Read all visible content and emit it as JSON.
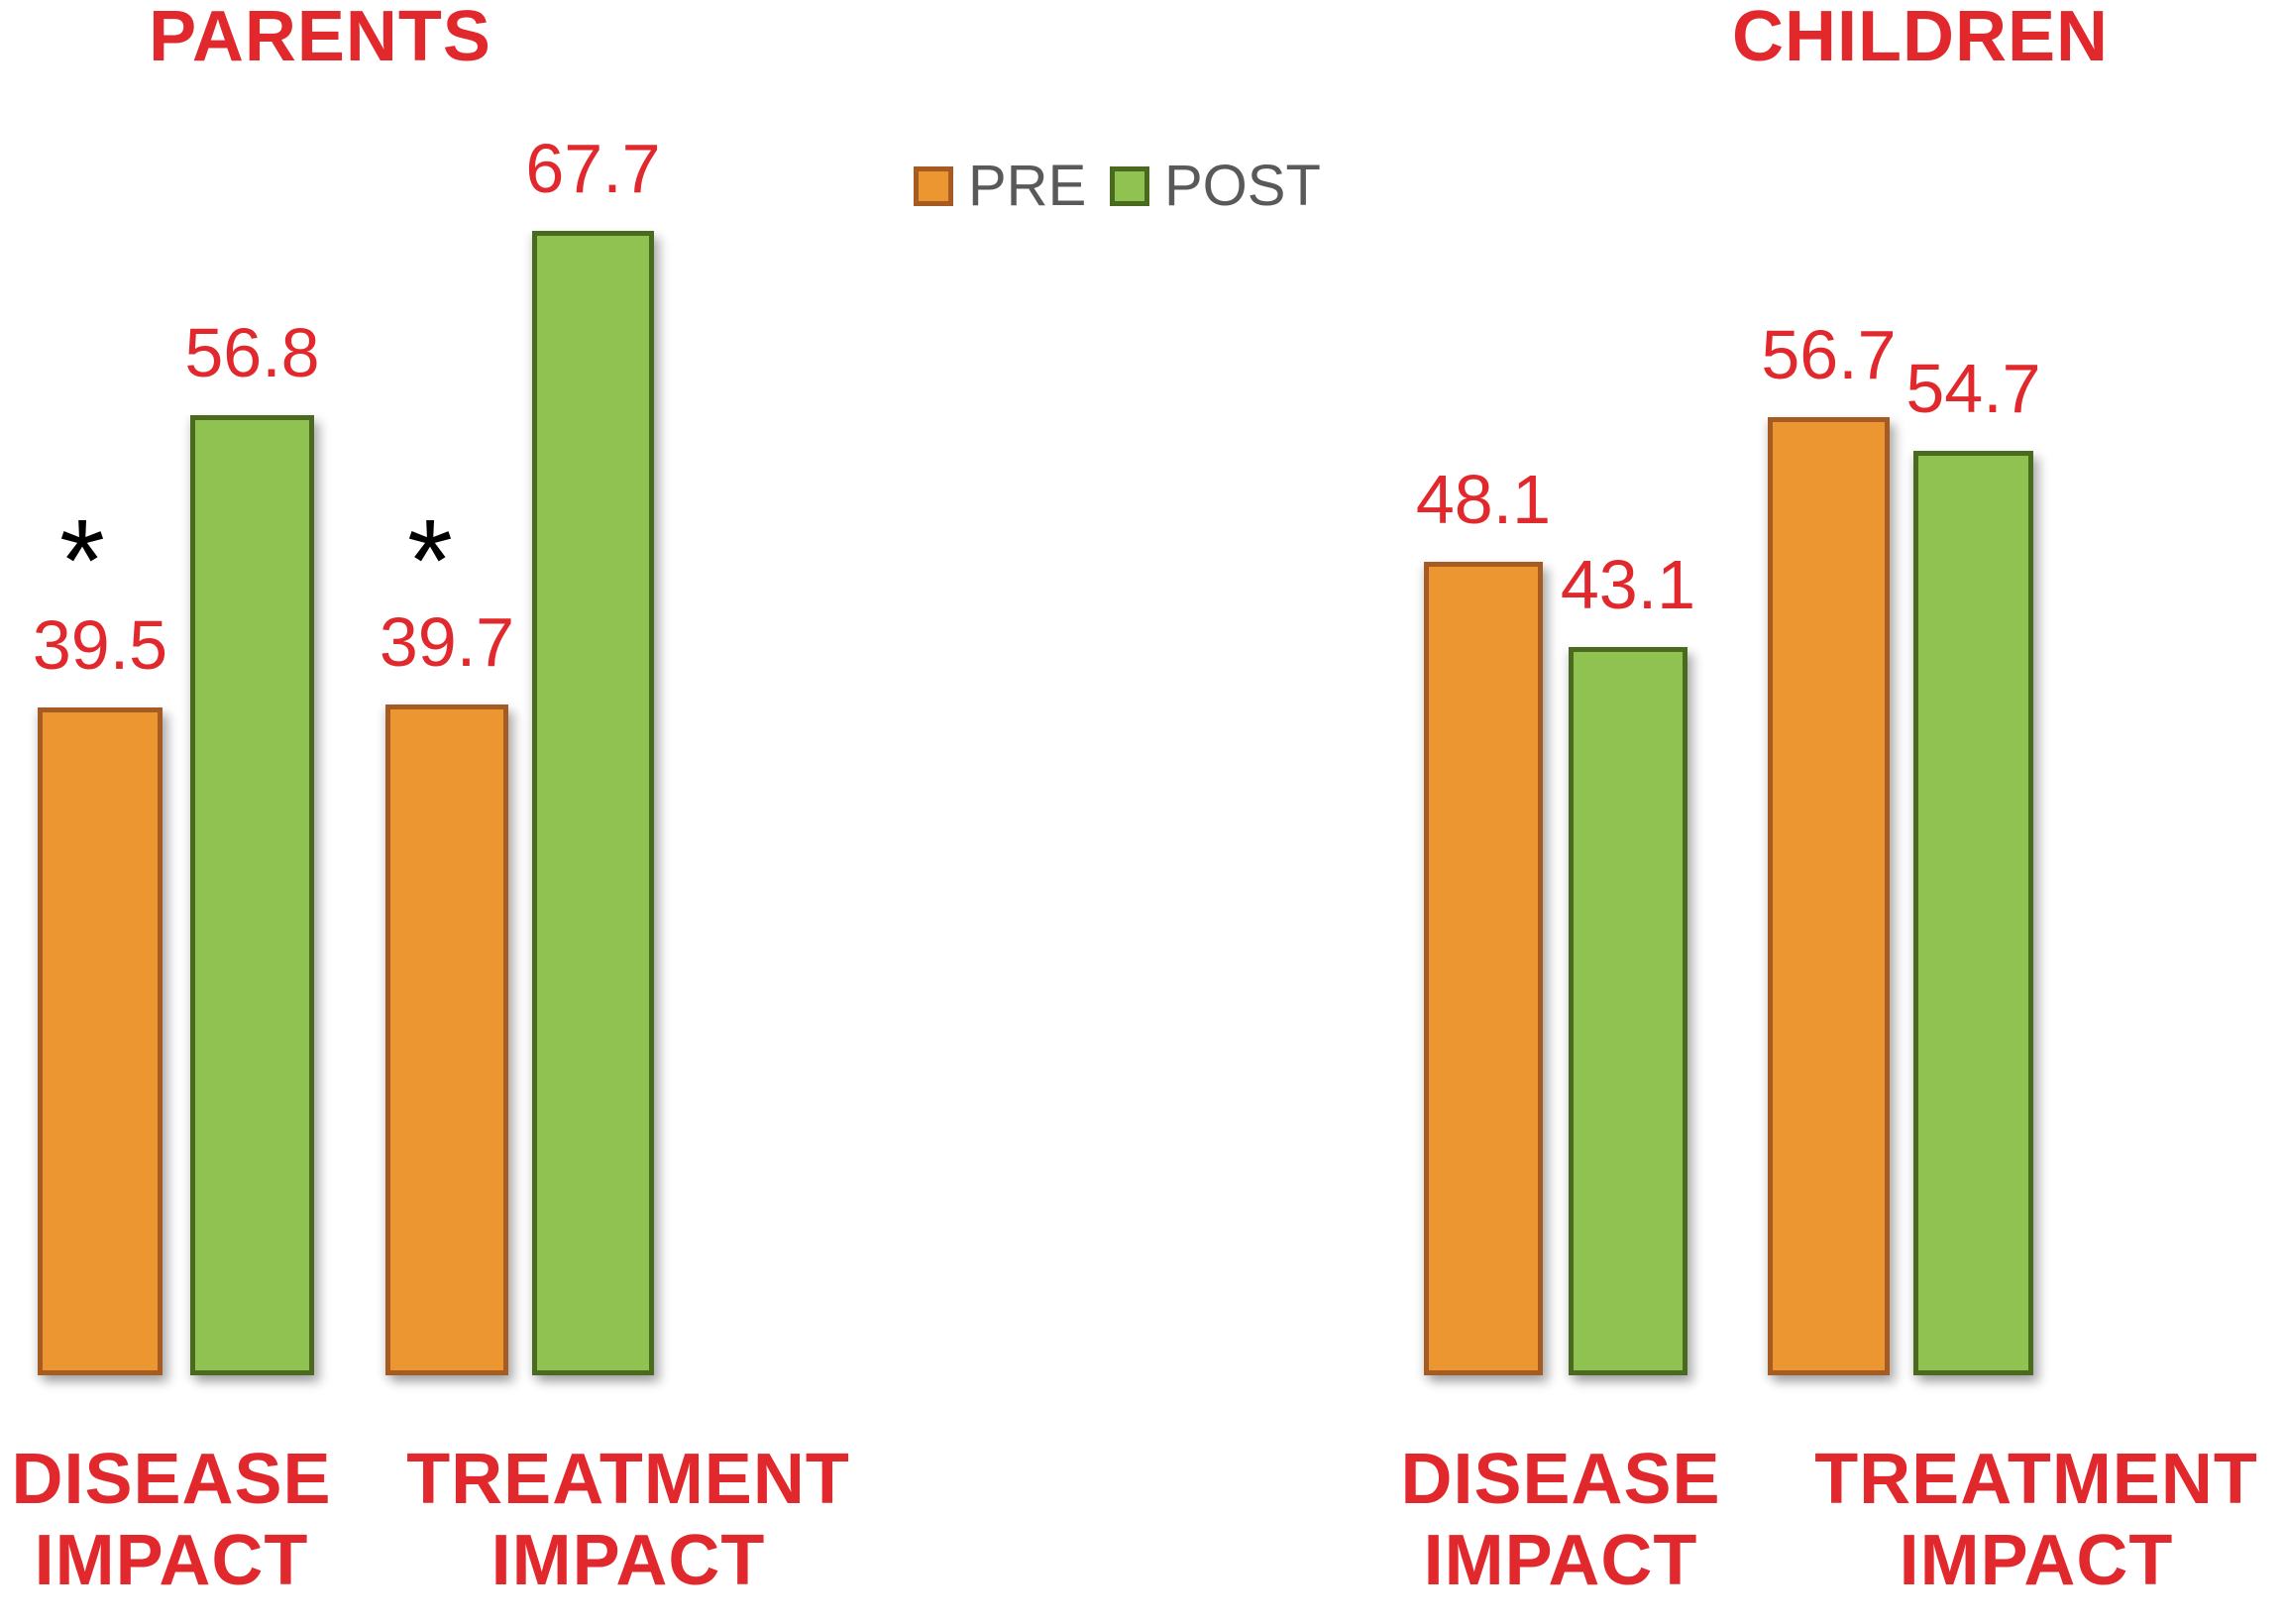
{
  "chart_data": {
    "type": "bar",
    "legend": {
      "items": [
        "PRE",
        "POST"
      ],
      "position": "top-center"
    },
    "ylim": [
      0,
      70
    ],
    "grid": false,
    "panels": [
      {
        "title": "PARENTS",
        "categories": [
          "DISEASE IMPACT",
          "TREATMENT IMPACT"
        ],
        "series": [
          {
            "name": "PRE",
            "values": [
              39.5,
              39.7
            ],
            "significance_marker": [
              "*",
              "*"
            ]
          },
          {
            "name": "POST",
            "values": [
              56.8,
              67.7
            ],
            "significance_marker": [
              "",
              ""
            ]
          }
        ]
      },
      {
        "title": "CHILDREN",
        "categories": [
          "DISEASE IMPACT",
          "TREATMENT IMPACT"
        ],
        "series": [
          {
            "name": "PRE",
            "values": [
              48.1,
              56.7
            ],
            "significance_marker": [
              "",
              ""
            ]
          },
          {
            "name": "POST",
            "values": [
              43.1,
              54.7
            ],
            "significance_marker": [
              "",
              ""
            ]
          }
        ]
      }
    ]
  },
  "colors": {
    "pre_fill": "#EB9631",
    "pre_border": "#A55B21",
    "post_fill": "#8FC250",
    "post_border": "#4A6A20",
    "label_red": "#E1282D",
    "legend_text": "#58595B",
    "significance_marker": "#000000"
  }
}
